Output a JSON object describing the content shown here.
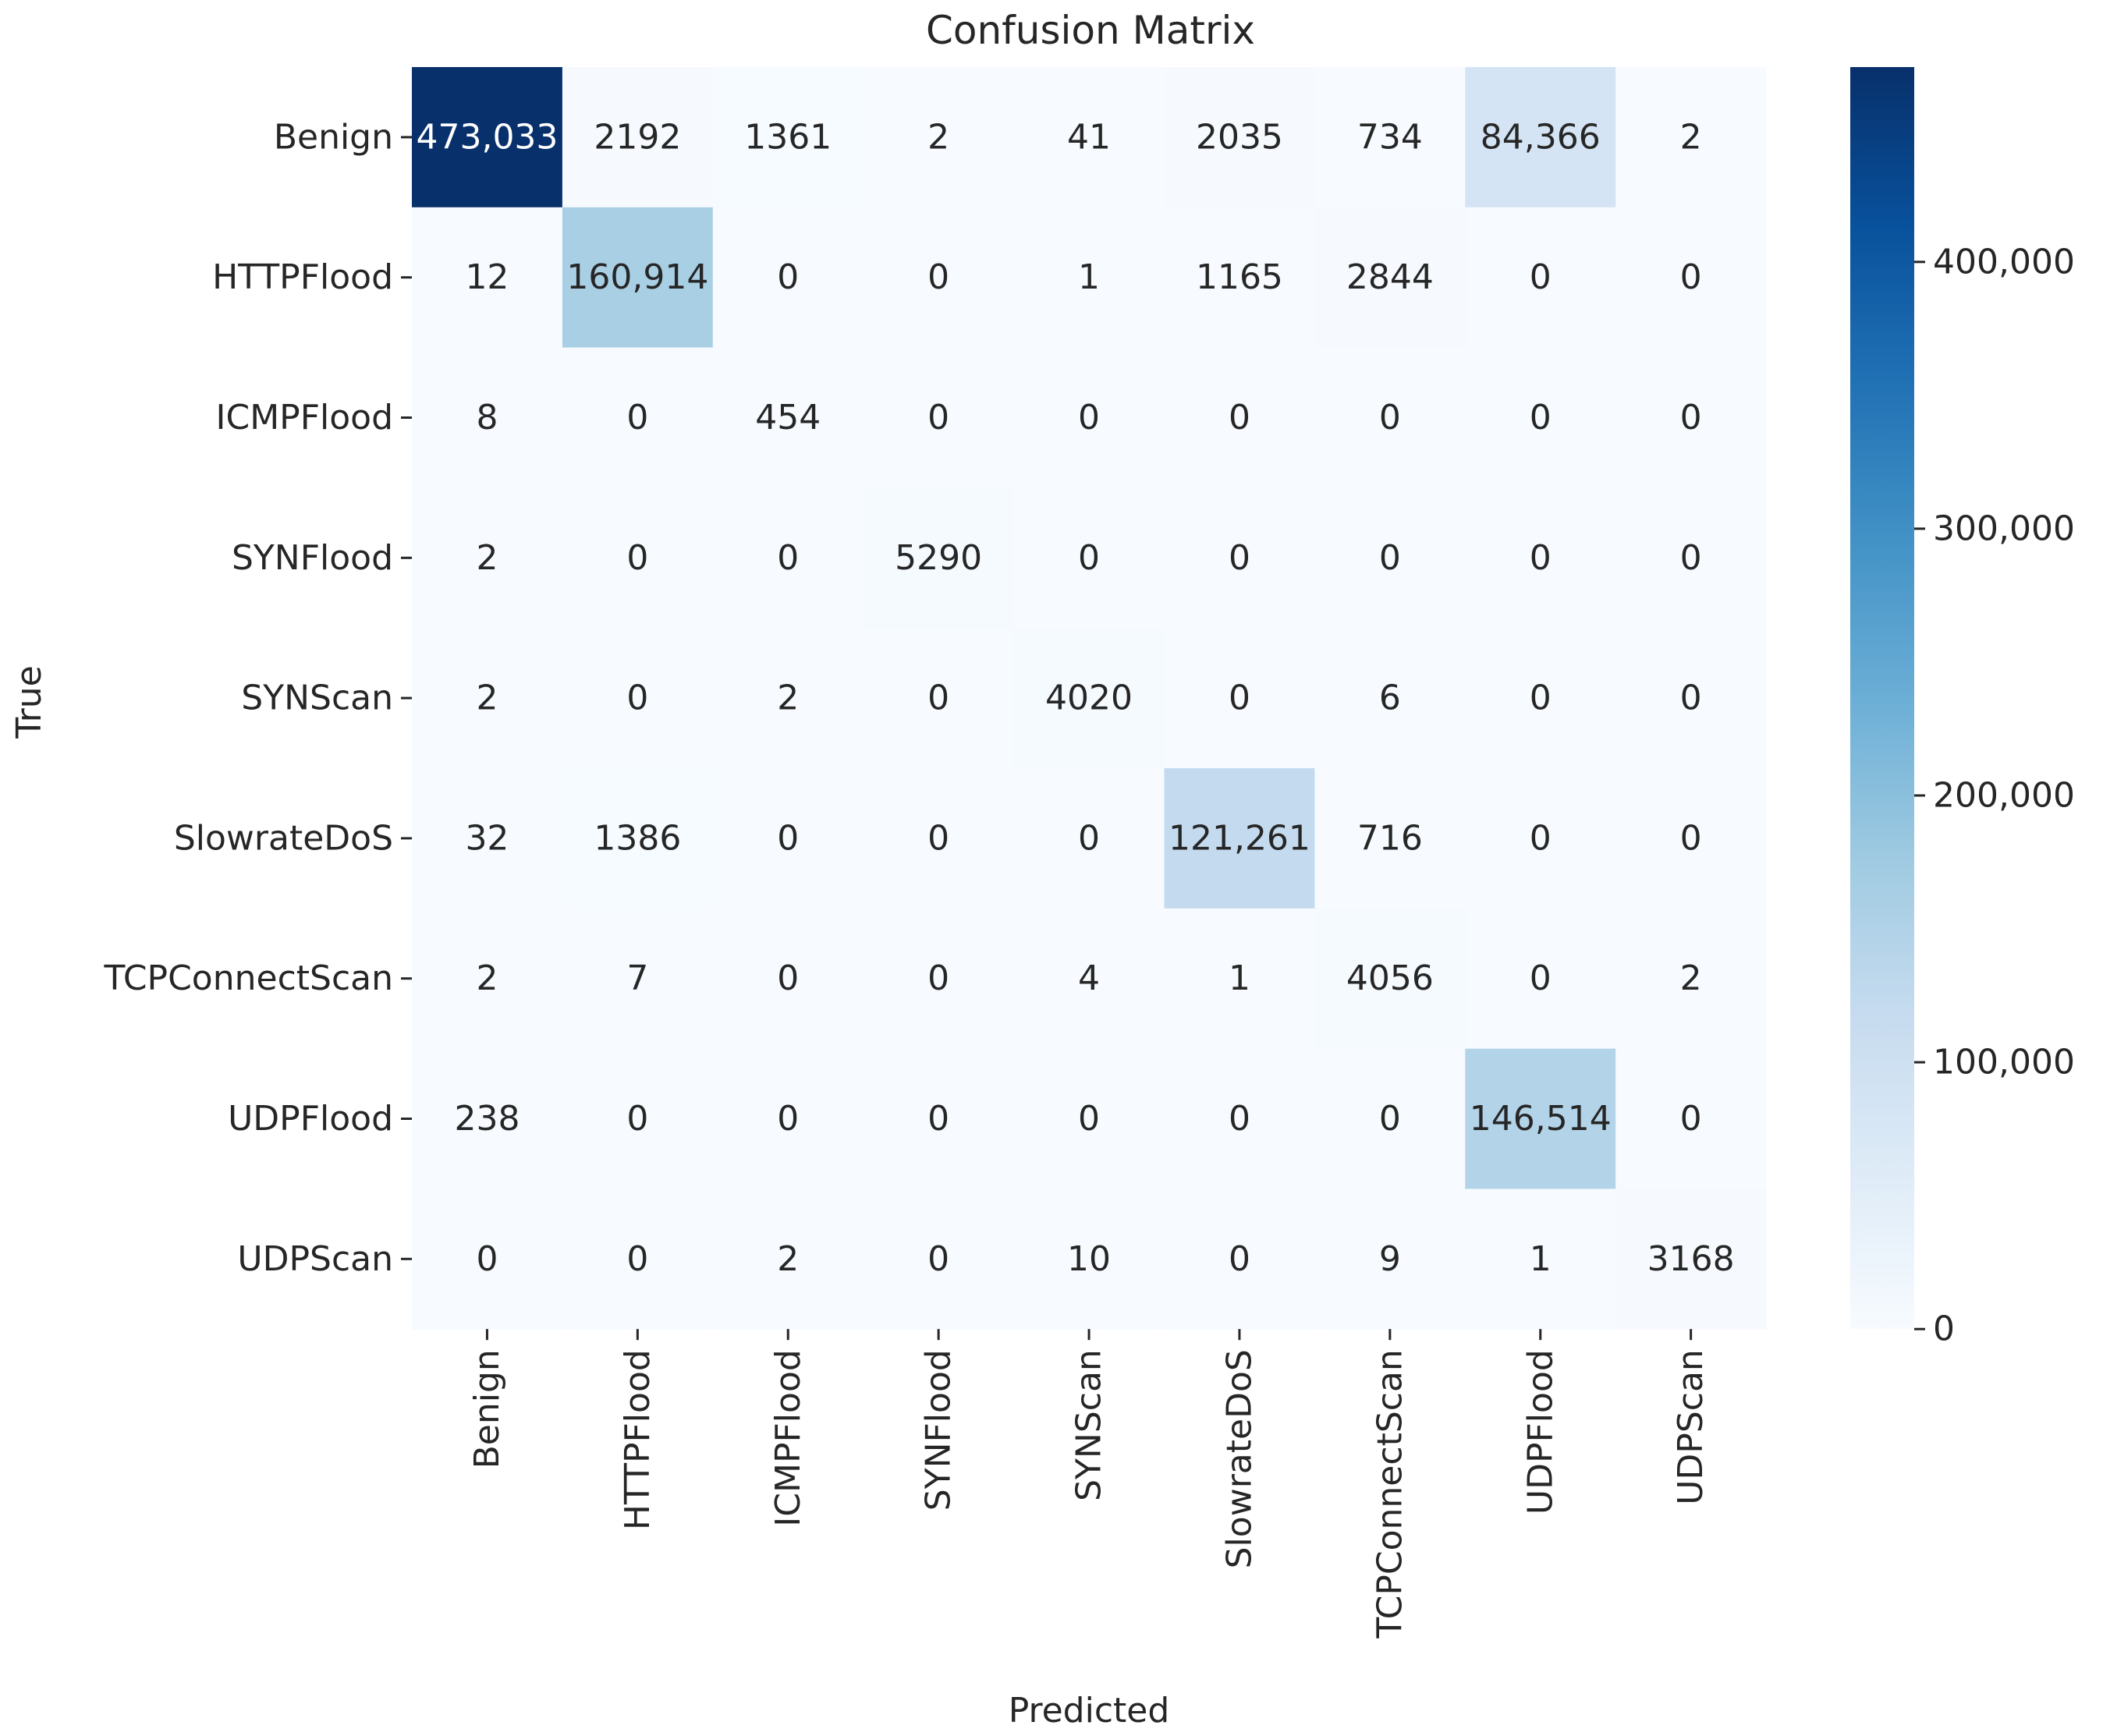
{
  "chart_data": {
    "type": "heatmap",
    "title": "Confusion Matrix",
    "xlabel": "Predicted",
    "ylabel": "True",
    "x_categories": [
      "Benign",
      "HTTPFlood",
      "ICMPFlood",
      "SYNFlood",
      "SYNScan",
      "SlowrateDoS",
      "TCPConnectScan",
      "UDPFlood",
      "UDPScan"
    ],
    "y_categories": [
      "Benign",
      "HTTPFlood",
      "ICMPFlood",
      "SYNFlood",
      "SYNScan",
      "SlowrateDoS",
      "TCPConnectScan",
      "UDPFlood",
      "UDPScan"
    ],
    "values": [
      [
        473033,
        2192,
        1361,
        2,
        41,
        2035,
        734,
        84366,
        2
      ],
      [
        12,
        160914,
        0,
        0,
        1,
        1165,
        2844,
        0,
        0
      ],
      [
        8,
        0,
        454,
        0,
        0,
        0,
        0,
        0,
        0
      ],
      [
        2,
        0,
        0,
        5290,
        0,
        0,
        0,
        0,
        0
      ],
      [
        2,
        0,
        2,
        0,
        4020,
        0,
        6,
        0,
        0
      ],
      [
        32,
        1386,
        0,
        0,
        0,
        121261,
        716,
        0,
        0
      ],
      [
        2,
        7,
        0,
        0,
        4,
        1,
        4056,
        0,
        2
      ],
      [
        238,
        0,
        0,
        0,
        0,
        0,
        0,
        146514,
        0
      ],
      [
        0,
        0,
        2,
        0,
        10,
        0,
        9,
        1,
        3168
      ]
    ],
    "cell_labels": [
      [
        "473,033",
        "2192",
        "1361",
        "2",
        "41",
        "2035",
        "734",
        "84,366",
        "2"
      ],
      [
        "12",
        "160,914",
        "0",
        "0",
        "1",
        "1165",
        "2844",
        "0",
        "0"
      ],
      [
        "8",
        "0",
        "454",
        "0",
        "0",
        "0",
        "0",
        "0",
        "0"
      ],
      [
        "2",
        "0",
        "0",
        "5290",
        "0",
        "0",
        "0",
        "0",
        "0"
      ],
      [
        "2",
        "0",
        "2",
        "0",
        "4020",
        "0",
        "6",
        "0",
        "0"
      ],
      [
        "32",
        "1386",
        "0",
        "0",
        "0",
        "121,261",
        "716",
        "0",
        "0"
      ],
      [
        "2",
        "7",
        "0",
        "0",
        "4",
        "1",
        "4056",
        "0",
        "2"
      ],
      [
        "238",
        "0",
        "0",
        "0",
        "0",
        "0",
        "0",
        "146,514",
        "0"
      ],
      [
        "0",
        "0",
        "2",
        "0",
        "10",
        "0",
        "9",
        "1",
        "3168"
      ]
    ],
    "colormap": "Blues",
    "colormap_stops": [
      "#f7fbff",
      "#deebf7",
      "#c6dbef",
      "#9ecae1",
      "#6baed6",
      "#4292c6",
      "#2171b5",
      "#08519c",
      "#08306b"
    ],
    "colorbar": {
      "range": [
        0,
        473033
      ],
      "ticks": [
        0,
        100000,
        200000,
        300000,
        400000
      ],
      "tick_labels": [
        "0",
        "100,000",
        "200,000",
        "300,000",
        "400,000"
      ]
    }
  }
}
